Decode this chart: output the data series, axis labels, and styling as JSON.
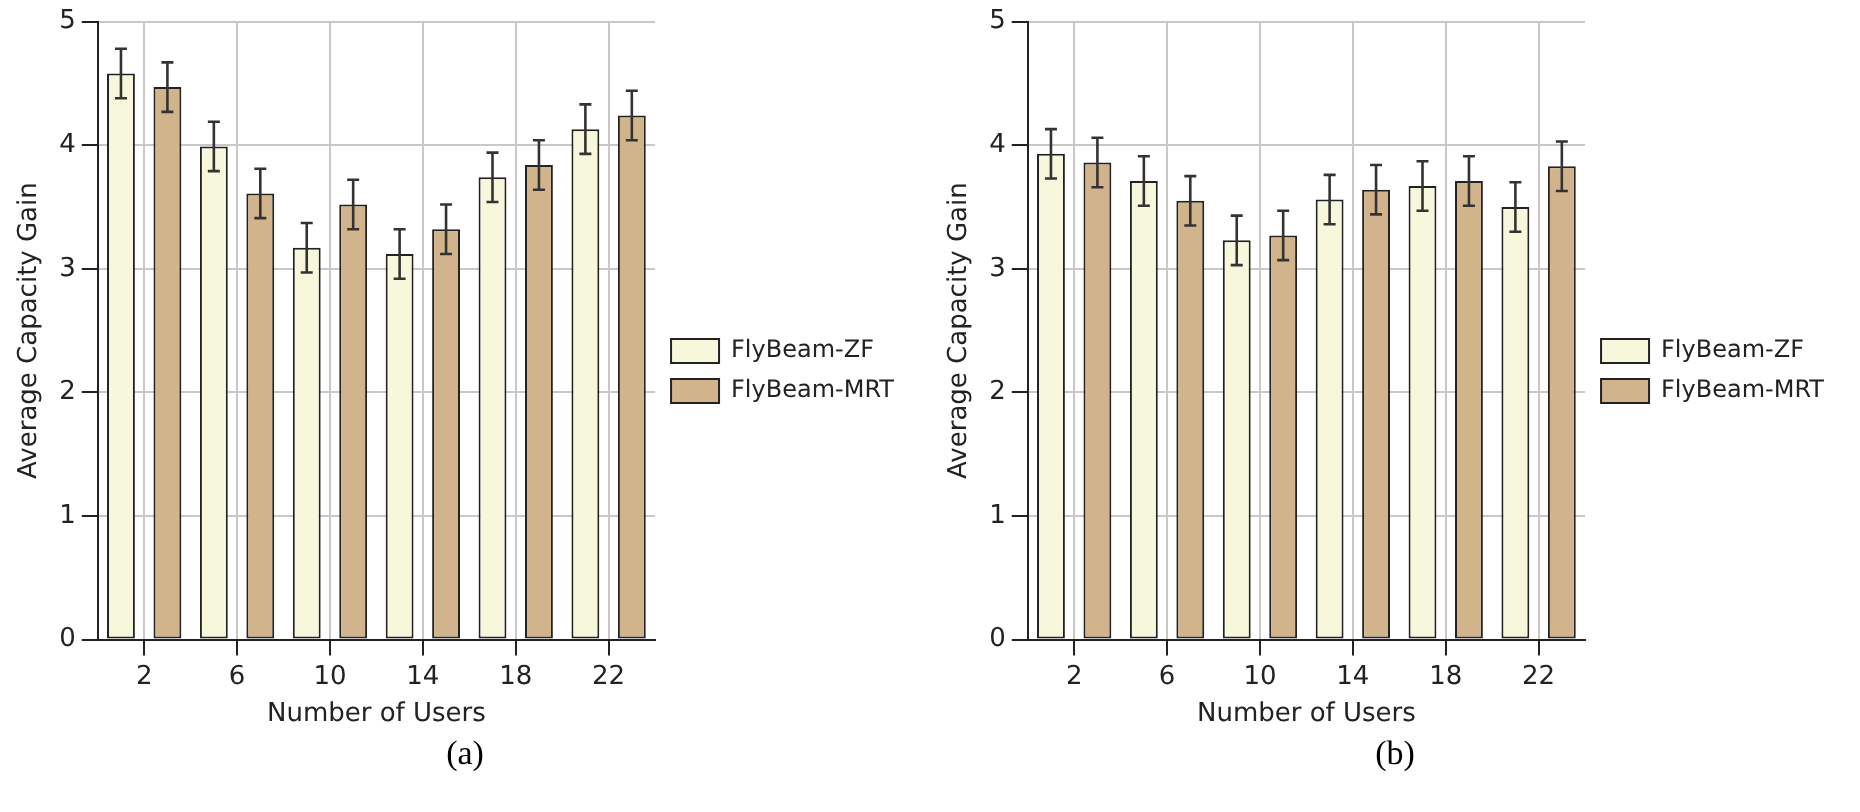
{
  "chart_data": [
    {
      "type": "bar",
      "xlabel": "Number of Users",
      "ylabel": "Average Capacity Gain",
      "categories": [
        "2",
        "6",
        "10",
        "14",
        "18",
        "22"
      ],
      "ylim": [
        0,
        5
      ],
      "yticks": [
        0,
        1,
        2,
        3,
        4,
        5
      ],
      "grid": true,
      "legend": "right",
      "annotations": [
        "(a)"
      ],
      "series": [
        {
          "name": "FlyBeam-ZF",
          "color": "#f7f7dc",
          "values": [
            4.58,
            3.99,
            3.17,
            3.12,
            3.74,
            4.13
          ],
          "errors": [
            0.2,
            0.2,
            0.2,
            0.2,
            0.2,
            0.2
          ]
        },
        {
          "name": "FlyBeam-MRT",
          "color": "#d2b48c",
          "values": [
            4.47,
            3.61,
            3.52,
            3.32,
            3.84,
            4.24
          ],
          "errors": [
            0.2,
            0.2,
            0.2,
            0.2,
            0.2,
            0.2
          ]
        }
      ]
    },
    {
      "type": "bar",
      "xlabel": "Number of Users",
      "ylabel": "Average Capacity Gain",
      "categories": [
        "2",
        "6",
        "10",
        "14",
        "18",
        "22"
      ],
      "ylim": [
        0,
        5
      ],
      "yticks": [
        0,
        1,
        2,
        3,
        4,
        5
      ],
      "grid": true,
      "legend": "right",
      "annotations": [
        "(b)"
      ],
      "series": [
        {
          "name": "FlyBeam-ZF",
          "color": "#f7f7dc",
          "values": [
            3.93,
            3.71,
            3.23,
            3.56,
            3.67,
            3.5
          ],
          "errors": [
            0.2,
            0.2,
            0.2,
            0.2,
            0.2,
            0.2
          ]
        },
        {
          "name": "FlyBeam-MRT",
          "color": "#d2b48c",
          "values": [
            3.86,
            3.55,
            3.27,
            3.64,
            3.71,
            3.83
          ],
          "errors": [
            0.2,
            0.2,
            0.2,
            0.2,
            0.2,
            0.2
          ]
        }
      ]
    }
  ]
}
